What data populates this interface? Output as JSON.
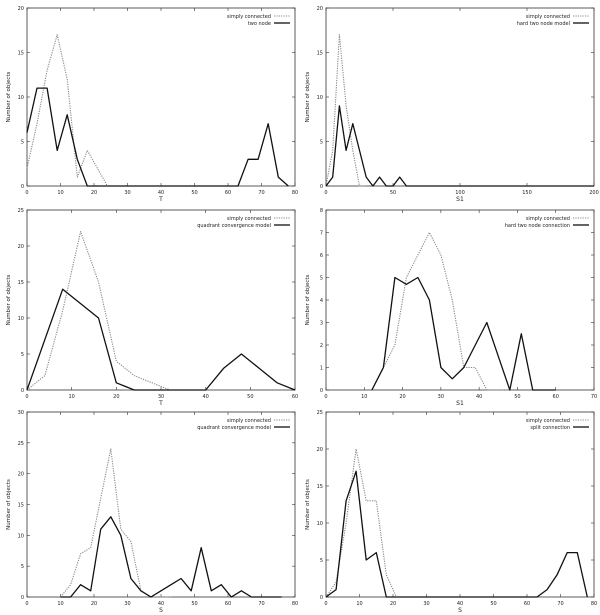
{
  "chart_data": [
    {
      "type": "line",
      "xlabel": "T",
      "ylabel": "Number of objects",
      "xlim": [
        0,
        80
      ],
      "ylim": [
        0,
        20
      ],
      "xticks": [
        0,
        10,
        20,
        30,
        40,
        50,
        60,
        70,
        80
      ],
      "yticks": [
        0,
        5,
        10,
        15,
        20
      ],
      "legend_position": "top-right",
      "series": [
        {
          "name": "simply connected",
          "style": "dotted",
          "color": "#888888",
          "x": [
            0,
            3,
            6,
            9,
            12,
            15,
            18,
            21,
            24,
            27,
            30
          ],
          "y": [
            2,
            7,
            13,
            17,
            12,
            1,
            4,
            2,
            0,
            0,
            0
          ]
        },
        {
          "name": "two node",
          "style": "solid",
          "color": "#111111",
          "x": [
            0,
            3,
            6,
            9,
            12,
            15,
            18,
            21,
            24,
            27,
            30,
            33,
            36,
            39,
            42,
            45,
            48,
            51,
            54,
            57,
            60,
            63,
            66,
            69,
            72,
            75,
            78
          ],
          "y": [
            6,
            11,
            11,
            4,
            8,
            3,
            0,
            0,
            0,
            0,
            0,
            0,
            0,
            0,
            0,
            0,
            0,
            0,
            0,
            0,
            0,
            0,
            3,
            3,
            7,
            1,
            0
          ]
        }
      ]
    },
    {
      "type": "line",
      "xlabel": "S_1",
      "ylabel": "Number of objects",
      "xlim": [
        0,
        200
      ],
      "ylim": [
        0,
        20
      ],
      "xticks": [
        0,
        50,
        100,
        150,
        200
      ],
      "yticks": [
        0,
        5,
        10,
        15,
        20
      ],
      "legend_position": "top-right",
      "series": [
        {
          "name": "simply connected",
          "style": "dotted",
          "color": "#888888",
          "x": [
            0,
            5,
            10,
            15,
            20,
            25,
            30
          ],
          "y": [
            0,
            4,
            17,
            9,
            4,
            0,
            0
          ]
        },
        {
          "name": "hard two node model",
          "style": "solid",
          "color": "#111111",
          "x": [
            0,
            5,
            10,
            15,
            20,
            25,
            30,
            35,
            40,
            45,
            50,
            55,
            60,
            65,
            70,
            75,
            80,
            85,
            90,
            95,
            100,
            105,
            110,
            115,
            120,
            125,
            130,
            135,
            140,
            145,
            150,
            155,
            160,
            165,
            170,
            175,
            180,
            185,
            190,
            195,
            200
          ],
          "y": [
            0,
            1,
            9,
            4,
            7,
            4,
            1,
            0,
            1,
            0,
            0,
            1,
            0,
            0,
            0,
            0,
            0,
            0,
            0,
            0,
            0,
            0,
            0,
            0,
            0,
            0,
            0,
            0,
            0,
            0,
            0,
            0,
            0,
            0,
            0,
            0,
            0,
            0,
            0,
            0,
            0
          ]
        }
      ]
    },
    {
      "type": "line",
      "xlabel": "T",
      "ylabel": "Number of objects",
      "xlim": [
        0,
        60
      ],
      "ylim": [
        0,
        25
      ],
      "xticks": [
        0,
        10,
        20,
        30,
        40,
        50,
        60
      ],
      "yticks": [
        0,
        5,
        10,
        15,
        20,
        25
      ],
      "legend_position": "top-right",
      "series": [
        {
          "name": "simply connected",
          "style": "dotted",
          "color": "#888888",
          "x": [
            0,
            4,
            8,
            12,
            16,
            20,
            24,
            28,
            32
          ],
          "y": [
            0,
            2,
            11,
            22,
            15,
            4,
            2,
            1,
            0
          ]
        },
        {
          "name": "quadrant convergence model",
          "style": "solid",
          "color": "#111111",
          "x": [
            0,
            8,
            16,
            20,
            24,
            36,
            40,
            44,
            48,
            52,
            56,
            60
          ],
          "y": [
            0,
            14,
            10,
            1,
            0,
            0,
            0,
            3,
            5,
            3,
            1,
            0
          ]
        }
      ]
    },
    {
      "type": "line",
      "xlabel": "S_1",
      "ylabel": "Number of objects",
      "xlim": [
        0,
        70
      ],
      "ylim": [
        0,
        8
      ],
      "xticks": [
        0,
        10,
        20,
        30,
        40,
        50,
        60,
        70
      ],
      "yticks": [
        0,
        1,
        2,
        3,
        4,
        5,
        6,
        7,
        8
      ],
      "legend_position": "top-right",
      "series": [
        {
          "name": "simply connected",
          "style": "dotted",
          "color": "#888888",
          "x": [
            12,
            15,
            18,
            21,
            24,
            27,
            30,
            33,
            36,
            39,
            42,
            45,
            48
          ],
          "y": [
            0,
            1,
            2,
            5,
            6,
            7,
            6,
            4,
            1,
            1,
            0,
            0,
            0
          ]
        },
        {
          "name": "hard two node connection",
          "style": "solid",
          "color": "#111111",
          "x": [
            12,
            15,
            18,
            21,
            24,
            27,
            30,
            33,
            36,
            39,
            42,
            45,
            48,
            51,
            54,
            57,
            60
          ],
          "y": [
            0,
            1,
            5,
            4.7,
            5,
            4,
            1,
            0.5,
            1,
            2,
            3,
            1.5,
            0,
            2.5,
            0,
            0,
            0
          ]
        }
      ]
    },
    {
      "type": "line",
      "xlabel": "S",
      "ylabel": "Number of objects",
      "xlim": [
        0,
        80
      ],
      "ylim": [
        0,
        30
      ],
      "xticks": [
        0,
        10,
        20,
        30,
        40,
        50,
        60,
        70,
        80
      ],
      "yticks": [
        0,
        5,
        10,
        15,
        20,
        25,
        30
      ],
      "legend_position": "top-right",
      "series": [
        {
          "name": "simply connected",
          "style": "dotted",
          "color": "#888888",
          "x": [
            10,
            13,
            16,
            19,
            22,
            25,
            28,
            31,
            34,
            37,
            40,
            43
          ],
          "y": [
            0,
            2,
            7,
            8,
            16,
            24,
            11,
            9,
            1,
            0,
            0,
            0
          ]
        },
        {
          "name": "quadrant convergence model",
          "style": "solid",
          "color": "#111111",
          "x": [
            10,
            13,
            16,
            19,
            22,
            25,
            28,
            31,
            34,
            37,
            40,
            43,
            46,
            49,
            52,
            55,
            58,
            61,
            64,
            67,
            70,
            73,
            76
          ],
          "y": [
            0,
            0,
            2,
            1,
            11,
            13,
            10,
            3,
            1,
            0,
            1,
            2,
            3,
            1,
            8,
            1,
            2,
            0,
            1,
            0,
            0,
            0,
            0
          ]
        }
      ]
    },
    {
      "type": "line",
      "xlabel": "S",
      "ylabel": "Number of objects",
      "xlim": [
        0,
        80
      ],
      "ylim": [
        0,
        25
      ],
      "xticks": [
        0,
        10,
        20,
        30,
        40,
        50,
        60,
        70,
        80
      ],
      "yticks": [
        0,
        5,
        10,
        15,
        20,
        25
      ],
      "legend_position": "top-right",
      "series": [
        {
          "name": "simply connected",
          "style": "dotted",
          "color": "#888888",
          "x": [
            0,
            3,
            6,
            9,
            12,
            15,
            18,
            21,
            24,
            27
          ],
          "y": [
            0,
            2,
            10,
            20,
            13,
            13,
            3,
            0,
            0,
            0
          ]
        },
        {
          "name": "split connection",
          "style": "solid",
          "color": "#111111",
          "x": [
            0,
            3,
            6,
            9,
            12,
            15,
            18,
            21,
            24,
            27,
            30,
            33,
            36,
            39,
            42,
            45,
            48,
            51,
            54,
            57,
            60,
            63,
            66,
            69,
            72,
            75,
            78
          ],
          "y": [
            0,
            1,
            13,
            17,
            5,
            6,
            0,
            0,
            0,
            0,
            0,
            0,
            0,
            0,
            0,
            0,
            0,
            0,
            0,
            0,
            0,
            0,
            1,
            3,
            6,
            6,
            0
          ]
        }
      ]
    }
  ]
}
